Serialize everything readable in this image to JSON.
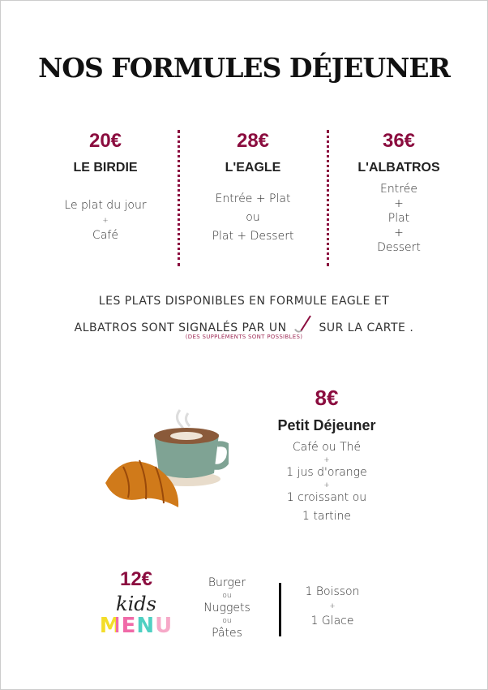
{
  "title": "NOS FORMULES DÉJEUNER",
  "colors": {
    "accent": "#8b0d3f"
  },
  "formules": [
    {
      "price": "20€",
      "name": "LE BIRDIE",
      "lines": [
        "Le plat du jour",
        "+",
        "Café"
      ]
    },
    {
      "price": "28€",
      "name": "L'EAGLE",
      "lines": [
        "Entrée + Plat",
        "ou",
        "Plat + Dessert"
      ]
    },
    {
      "price": "36€",
      "name": "L'ALBATROS",
      "lines": [
        "Entrée",
        "+",
        "Plat",
        "+",
        "Dessert"
      ]
    }
  ],
  "note": {
    "line1": "LES PLATS DISPONIBLES  EN FORMULE EAGLE ET",
    "line2a": "ALBATROS SONT SIGNALÉS PAR UN",
    "icon": "golf-club-icon",
    "line2b": "SUR LA CARTE .",
    "sub": "(DES SUPPLÉMENTS SONT POSSIBLES)"
  },
  "breakfast": {
    "price": "8€",
    "name": "Petit Déjeuner",
    "lines": [
      "Café ou Thé",
      "+",
      "1 jus d'orange",
      "+",
      "1 croissant ou",
      "1 tartine"
    ]
  },
  "kids": {
    "price": "12€",
    "logo_top": "kids",
    "logo_bottom": "MENU",
    "mains": [
      "Burger",
      "ou",
      "Nuggets",
      "ou",
      "Pâtes"
    ],
    "extras": [
      "1 Boisson",
      "+",
      "1 Glace"
    ]
  }
}
